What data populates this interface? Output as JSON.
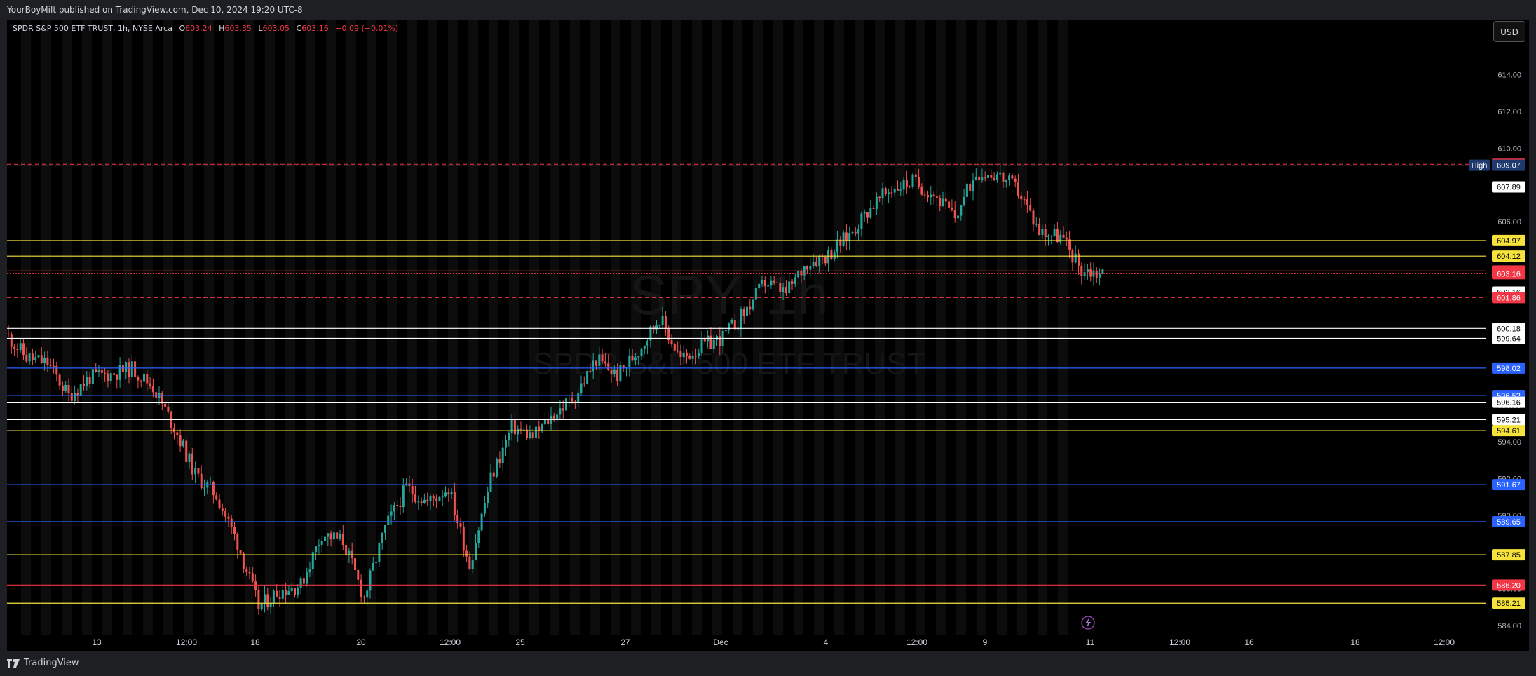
{
  "header": {
    "publish_text": "YourBoyMilt published on TradingView.com, Dec 10, 2024 19:20 UTC-8"
  },
  "legend": {
    "symbol_text": "SPDR S&P 500 ETF TRUST, 1h, NYSE Arca",
    "o_label": "O",
    "o_value": "603.24",
    "h_label": "H",
    "h_value": "603.35",
    "l_label": "L",
    "l_value": "603.05",
    "c_label": "C",
    "c_value": "603.16",
    "change": "−0.09 (−0.01%)"
  },
  "currency_button": "USD",
  "footer": {
    "brand": "TradingView"
  },
  "watermark": {
    "ticker": "SPY, 1h",
    "name": "SPDR S&P 500 ETF TRUST"
  },
  "colors": {
    "background": "#000000",
    "up": "#26a69a",
    "down": "#ef5350",
    "red_line": "#f23645",
    "yellow_line": "#f5e23b",
    "blue_line": "#2962ff",
    "white_line": "#ffffff",
    "high_badge": "#1e3a6e"
  },
  "chart_data": {
    "type": "candlestick",
    "symbol": "SPY",
    "interval": "1h",
    "ylim": [
      583.5,
      617.0
    ],
    "y_ticks": [
      "584.00",
      "586.00",
      "588.00",
      "590.00",
      "592.00",
      "594.00",
      "596.00",
      "598.00",
      "600.00",
      "602.00",
      "604.00",
      "606.00",
      "608.00",
      "610.00",
      "612.00",
      "614.00",
      "616.00"
    ],
    "x_ticks": [
      "13",
      "12:00",
      "18",
      "20",
      "12:00",
      "25",
      "27",
      "Dec",
      "4",
      "12:00",
      "9",
      "11",
      "12:00",
      "16",
      "18",
      "12:00"
    ],
    "price_path": [
      599.9,
      598.6,
      598.3,
      596.5,
      597.5,
      597.7,
      598.0,
      597.0,
      594.8,
      592.2,
      591.1,
      588.5,
      585.0,
      585.9,
      586.2,
      589.0,
      588.6,
      585.5,
      589.3,
      591.5,
      590.7,
      591.5,
      587.3,
      592.0,
      594.8,
      594.3,
      595.5,
      596.5,
      598.5,
      597.6,
      599.0,
      600.8,
      598.5,
      599.2,
      599.7,
      601.0,
      602.7,
      602.1,
      603.8,
      604.2,
      605.3,
      606.8,
      607.8,
      608.2,
      607.5,
      606.2,
      608.7,
      608.6,
      607.7,
      605.5,
      605.2,
      603.4,
      603.16
    ],
    "levels": [
      {
        "value": 609.12,
        "label": "609.12",
        "color": "red",
        "style": "dashed"
      },
      {
        "value": 609.07,
        "label": "609.07",
        "color": "high",
        "style": "dotted",
        "tag": "High"
      },
      {
        "value": 607.89,
        "label": "607.89",
        "color": "white",
        "style": "dotted"
      },
      {
        "value": 604.97,
        "label": "604.97",
        "color": "yellow",
        "style": "solid"
      },
      {
        "value": 604.12,
        "label": "604.12",
        "color": "yellow",
        "style": "solid"
      },
      {
        "value": 603.31,
        "label": "603.31",
        "color": "red",
        "style": "solid"
      },
      {
        "value": 603.16,
        "label": "603.16",
        "color": "red",
        "style": "dotted"
      },
      {
        "value": 602.16,
        "label": "602.16",
        "color": "white",
        "style": "dotted"
      },
      {
        "value": 601.86,
        "label": "601.86",
        "color": "red",
        "style": "dashed"
      },
      {
        "value": 600.18,
        "label": "600.18",
        "color": "white",
        "style": "solid"
      },
      {
        "value": 599.64,
        "label": "599.64",
        "color": "white",
        "style": "solid"
      },
      {
        "value": 598.02,
        "label": "598.02",
        "color": "blue",
        "style": "solid"
      },
      {
        "value": 596.52,
        "label": "596.52",
        "color": "blue",
        "style": "solid"
      },
      {
        "value": 596.16,
        "label": "596.16",
        "color": "white",
        "style": "solid"
      },
      {
        "value": 595.21,
        "label": "595.21",
        "color": "white",
        "style": "solid"
      },
      {
        "value": 594.61,
        "label": "594.61",
        "color": "yellow",
        "style": "solid"
      },
      {
        "value": 591.67,
        "label": "591.67",
        "color": "blue",
        "style": "solid"
      },
      {
        "value": 589.65,
        "label": "589.65",
        "color": "blue",
        "style": "solid"
      },
      {
        "value": 587.85,
        "label": "587.85",
        "color": "yellow",
        "style": "solid"
      },
      {
        "value": 586.2,
        "label": "586.20",
        "color": "red",
        "style": "solid"
      },
      {
        "value": 585.21,
        "label": "585.21",
        "color": "yellow",
        "style": "solid"
      }
    ]
  }
}
